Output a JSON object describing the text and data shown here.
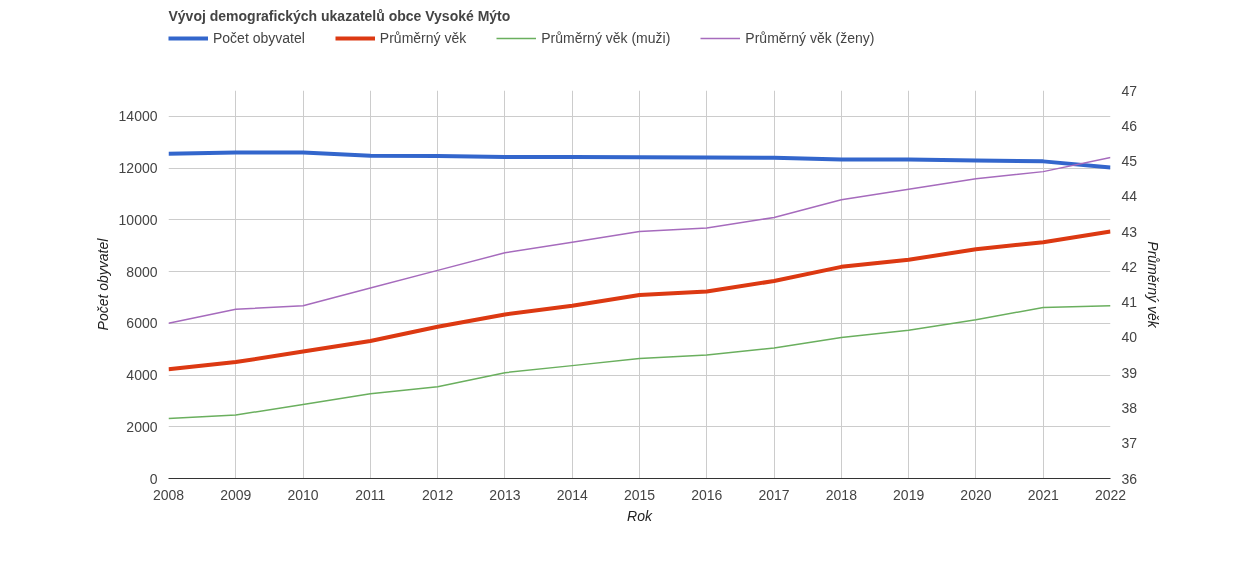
{
  "chart_data": {
    "type": "line",
    "title": "Vývoj demografických ukazatelů obce Vysoké Mýto",
    "xlabel": "Rok",
    "ylabel": "Počet obyvatel",
    "y2label": "Průměrný věk",
    "x": [
      2008,
      2009,
      2010,
      2011,
      2012,
      2013,
      2014,
      2015,
      2016,
      2017,
      2018,
      2019,
      2020,
      2021,
      2022
    ],
    "series": [
      {
        "name": "Počet obyvatel",
        "color": "#3366cc",
        "values": [
          12550,
          12600,
          12600,
          12480,
          12470,
          12430,
          12430,
          12420,
          12410,
          12400,
          12330,
          12330,
          12290,
          12260,
          12020
        ]
      },
      {
        "name": "Průměrný věk",
        "color": "#dc3912",
        "axis": "y2",
        "values": [
          39.1,
          39.3,
          39.6,
          39.9,
          40.3,
          40.65,
          40.9,
          41.2,
          41.3,
          41.6,
          42.0,
          42.2,
          42.5,
          42.7,
          43.0
        ]
      },
      {
        "name": "Průměrný věk (muži)",
        "color": "#6aaf5e",
        "axis": "y2",
        "values": [
          37.7,
          37.8,
          38.1,
          38.4,
          38.6,
          39.0,
          39.2,
          39.4,
          39.5,
          39.7,
          40.0,
          40.2,
          40.5,
          40.85,
          40.9
        ]
      },
      {
        "name": "Průměrný věk (ženy)",
        "color": "#a66bbd",
        "axis": "y2",
        "values": [
          40.4,
          40.8,
          40.9,
          41.4,
          41.9,
          42.4,
          42.7,
          43.0,
          43.1,
          43.4,
          43.9,
          44.2,
          44.5,
          44.7,
          45.1
        ]
      }
    ],
    "xlim": [
      2008,
      2022
    ],
    "xticks": [
      2008,
      2009,
      2010,
      2011,
      2012,
      2013,
      2014,
      2015,
      2016,
      2017,
      2018,
      2019,
      2020,
      2021,
      2022
    ],
    "ylim": [
      0,
      15000
    ],
    "yticks": [
      0,
      2000,
      4000,
      6000,
      8000,
      10000,
      12000,
      14000
    ],
    "y2lim": [
      36,
      47
    ],
    "y2ticks": [
      36,
      37,
      38,
      39,
      40,
      41,
      42,
      43,
      44,
      45,
      46,
      47
    ],
    "grid": true,
    "legend": "top",
    "marker": "none",
    "line_style": "solid"
  }
}
